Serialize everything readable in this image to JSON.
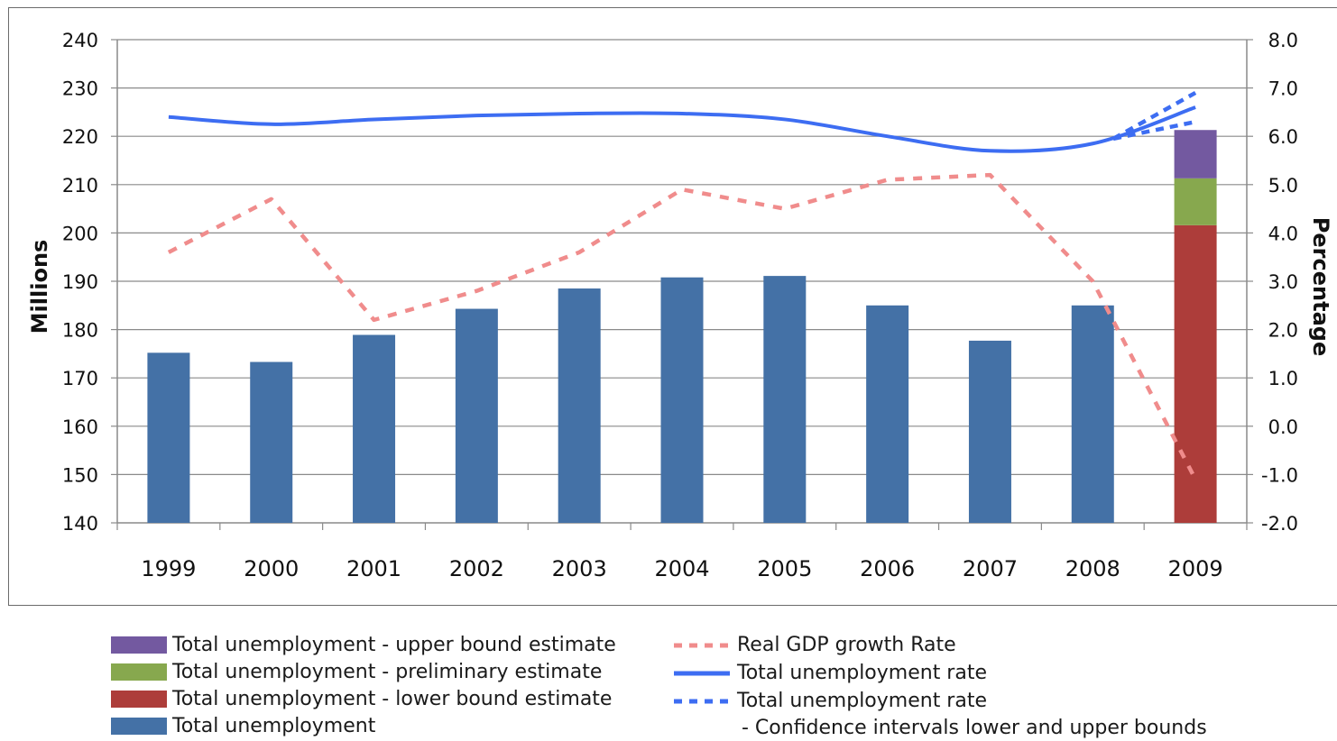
{
  "chart_data": {
    "type": "bar",
    "categories": [
      "1999",
      "2000",
      "2001",
      "2002",
      "2003",
      "2004",
      "2005",
      "2006",
      "2007",
      "2008",
      "2009"
    ],
    "ylabel": "Millions",
    "y2label": "Percentage",
    "ylim": [
      140,
      240
    ],
    "y2lim": [
      -2.0,
      8.0
    ],
    "yticks": [
      "140",
      "150",
      "160",
      "170",
      "180",
      "190",
      "200",
      "210",
      "220",
      "230",
      "240"
    ],
    "y2ticks": [
      "-2.0",
      "-1.0",
      "0.0",
      "1.0",
      "2.0",
      "3.0",
      "4.0",
      "5.0",
      "6.0",
      "7.0",
      "8.0"
    ],
    "grid": true,
    "series": [
      {
        "name": "Total unemployment",
        "kind": "bar",
        "axis": "left",
        "color": "#4471a6",
        "values": [
          175.2,
          173.3,
          178.9,
          184.3,
          188.5,
          190.8,
          191.1,
          185.0,
          177.7,
          185.0,
          null
        ]
      },
      {
        "name": "Total unemployment - lower bound estimate",
        "kind": "bar-stack",
        "axis": "left",
        "color": "#ad3d3a",
        "values": [
          null,
          null,
          null,
          null,
          null,
          null,
          null,
          null,
          null,
          null,
          201.6
        ]
      },
      {
        "name": "Total unemployment - preliminary estimate",
        "kind": "bar-stack",
        "axis": "left",
        "color": "#87a84e",
        "values": [
          null,
          null,
          null,
          null,
          null,
          null,
          null,
          null,
          null,
          null,
          211.3
        ]
      },
      {
        "name": "Total unemployment - upper bound estimate",
        "kind": "bar-stack",
        "axis": "left",
        "color": "#7359a0",
        "values": [
          null,
          null,
          null,
          null,
          null,
          null,
          null,
          null,
          null,
          null,
          221.3
        ]
      },
      {
        "name": "Real GDP growth Rate",
        "kind": "line-dashed",
        "axis": "right",
        "color": "#f08c8c",
        "values": [
          3.6,
          4.7,
          2.2,
          2.8,
          3.6,
          4.9,
          4.5,
          5.1,
          5.2,
          3.0,
          -1.1
        ]
      },
      {
        "name": "Total unemployment rate",
        "kind": "line",
        "axis": "right",
        "color": "#3d6df2",
        "values": [
          6.4,
          6.25,
          6.35,
          6.43,
          6.47,
          6.47,
          6.35,
          6.0,
          5.7,
          5.85,
          6.6
        ]
      },
      {
        "name": "Total unemployment rate - Confidence intervals lower and upper bounds",
        "kind": "ci-dashed",
        "axis": "right",
        "color": "#3d6df2",
        "x": [
          "2008.2",
          "2009"
        ],
        "lower": [
          5.95,
          6.3
        ],
        "upper": [
          5.95,
          6.9
        ]
      }
    ]
  },
  "legend": {
    "upper": "Total unemployment - upper bound estimate",
    "prelim": "Total unemployment - preliminary estimate",
    "lower": "Total unemployment - lower bound estimate",
    "total": "Total unemployment",
    "gdp": "Real GDP growth Rate",
    "rate": "Total unemployment rate",
    "ci": "Total unemployment rate",
    "ci_note": "- Confidence intervals lower and upper bounds"
  }
}
